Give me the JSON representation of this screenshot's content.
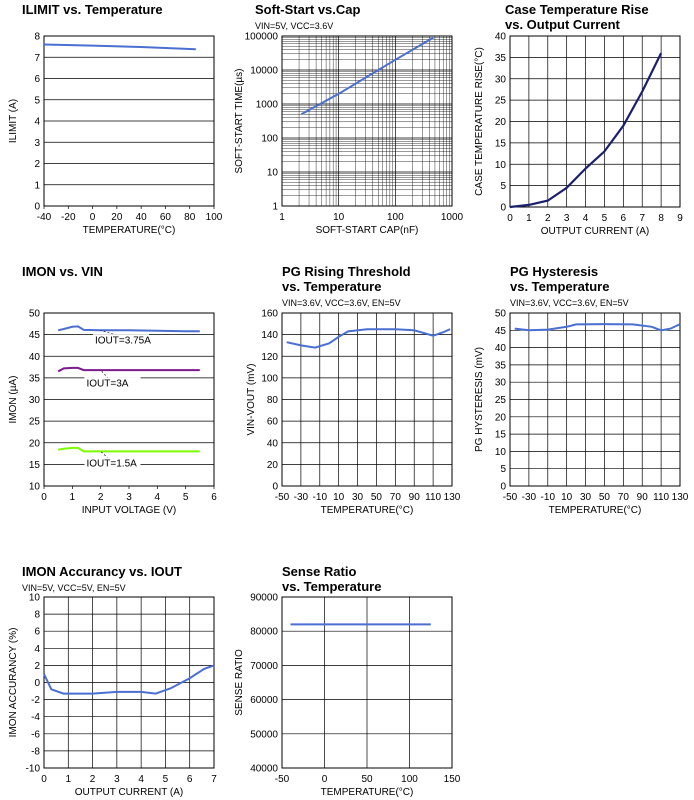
{
  "chart_data": [
    {
      "type": "line",
      "title": [
        "ILIMIT vs. Temperature"
      ],
      "xlabel": "TEMPERATURE(°C)",
      "ylabel": "ILIMIT (A)",
      "x": [
        -40,
        0,
        40,
        85
      ],
      "values": [
        7.6,
        7.55,
        7.48,
        7.38
      ],
      "color": "#4a6fd0",
      "xlim": [
        -40,
        100
      ],
      "xticks": [
        -40,
        -20,
        0,
        20,
        40,
        60,
        80,
        100
      ],
      "ylim": [
        0,
        8
      ],
      "yticks": [
        0,
        1,
        2,
        3,
        4,
        5,
        6,
        7,
        8
      ],
      "grid": "y"
    },
    {
      "type": "line",
      "title": [
        "Soft-Start vs.Cap"
      ],
      "subtitle": "VIN=5V, VCC=3.6V",
      "xlabel": "SOFT-START CAP(nF)",
      "ylabel": "SOFT-START TIME(µs)",
      "x": [
        2.2,
        10,
        100,
        470
      ],
      "values": [
        500,
        2000,
        20000,
        90000
      ],
      "color": "#4a6fd0",
      "log_x": true,
      "log_y": true,
      "xlim": [
        1,
        1000
      ],
      "xticks": [
        1,
        10,
        100,
        1000
      ],
      "ylim": [
        1,
        100000
      ],
      "yticks": [
        1,
        10,
        100,
        1000,
        10000,
        100000
      ],
      "grid": "both"
    },
    {
      "type": "line",
      "title": [
        "Case Temperature Rise",
        "vs. Output Current"
      ],
      "xlabel": "OUTPUT CURRENT (A)",
      "ylabel": "CASE TEMPERATURE RISE(°C)",
      "x": [
        0,
        1,
        2,
        3,
        4,
        5,
        6,
        7,
        8
      ],
      "values": [
        0,
        0.5,
        1.5,
        4.5,
        9,
        13,
        19,
        27,
        36
      ],
      "color": "#1b1f6e",
      "xlim": [
        0,
        9
      ],
      "xticks": [
        0,
        1,
        2,
        3,
        4,
        5,
        6,
        7,
        8,
        9
      ],
      "ylim": [
        0,
        40
      ],
      "yticks": [
        0,
        5,
        10,
        15,
        20,
        25,
        30,
        35,
        40
      ],
      "grid": "both"
    },
    {
      "type": "line",
      "title": [
        "IMON vs. VIN"
      ],
      "xlabel": "INPUT VOLTAGE (V)",
      "ylabel": "IMON (µA)",
      "x": [
        0.5,
        0.7,
        1,
        1.2,
        1.4,
        2,
        3,
        4,
        5,
        5.5
      ],
      "series": [
        {
          "name": "IOUT=3.75A",
          "color": "#4a6fd0",
          "values": [
            46,
            46.3,
            46.8,
            46.9,
            46.1,
            46,
            46,
            45.9,
            45.8,
            45.8
          ]
        },
        {
          "name": "IOUT=3A",
          "color": "#7b1a8a",
          "values": [
            36.5,
            37.2,
            37.3,
            37.3,
            36.8,
            36.8,
            36.8,
            36.8,
            36.8,
            36.8
          ]
        },
        {
          "name": "IOUT=1.5A",
          "color": "#7cfc00",
          "values": [
            18.4,
            18.6,
            18.8,
            18.8,
            18,
            18,
            18,
            18,
            18,
            18
          ]
        }
      ],
      "xlim": [
        0,
        6
      ],
      "xticks": [
        0,
        1,
        2,
        3,
        4,
        5,
        6
      ],
      "ylim": [
        10,
        50
      ],
      "yticks": [
        10,
        15,
        20,
        25,
        30,
        35,
        40,
        45,
        50
      ],
      "grid": "y"
    },
    {
      "type": "line",
      "title": [
        "PG Rising Threshold",
        "vs. Temperature"
      ],
      "subtitle": "VIN=3.6V, VCC=3.6V, EN=5V",
      "xlabel": "TEMPERATURE(°C)",
      "ylabel": "VIN-VOUT (mV)",
      "x": [
        -45,
        -30,
        -15,
        0,
        10,
        20,
        40,
        70,
        90,
        110,
        120,
        128
      ],
      "values": [
        133,
        130,
        128,
        132,
        138,
        143,
        145,
        145,
        144,
        139,
        142,
        145
      ],
      "color": "#4a6fd0",
      "xlim": [
        -50,
        130
      ],
      "xticks": [
        -50,
        -30,
        -10,
        10,
        30,
        50,
        70,
        90,
        110,
        130
      ],
      "ylim": [
        0,
        160
      ],
      "yticks": [
        0,
        20,
        40,
        60,
        80,
        100,
        120,
        140,
        160
      ],
      "grid": "both"
    },
    {
      "type": "line",
      "title": [
        "PG Hysteresis",
        "vs. Temperature"
      ],
      "subtitle": "VIN=3.6V, VCC=3.6V, EN=5V",
      "xlabel": "TEMPERATURE(°C)",
      "ylabel": "PG HYSTERESIS (mV)",
      "x": [
        -45,
        -30,
        -10,
        10,
        20,
        50,
        80,
        100,
        110,
        120,
        130
      ],
      "values": [
        45.5,
        45,
        45.2,
        46,
        46.7,
        46.8,
        46.7,
        46,
        45,
        45.5,
        46.8
      ],
      "color": "#4a6fd0",
      "xlim": [
        -50,
        130
      ],
      "xticks": [
        -50,
        -30,
        -10,
        10,
        30,
        50,
        70,
        90,
        110,
        130
      ],
      "ylim": [
        0,
        50
      ],
      "yticks": [
        0,
        5,
        10,
        15,
        20,
        25,
        30,
        35,
        40,
        45,
        50
      ],
      "grid": "both"
    },
    {
      "type": "line",
      "title": [
        "IMON Accurancy vs. IOUT"
      ],
      "subtitle": "VIN=5V, VCC=5V, EN=5V",
      "xlabel": "OUTPUT CURRENT (A)",
      "ylabel": "IMON ACCURANCY (%)",
      "x": [
        0,
        0.3,
        0.8,
        2,
        3,
        4,
        4.6,
        5.2,
        6,
        6.6,
        7
      ],
      "values": [
        1,
        -0.8,
        -1.3,
        -1.3,
        -1.1,
        -1.1,
        -1.3,
        -0.7,
        0.5,
        1.6,
        2
      ],
      "color": "#4a6fd0",
      "xlim": [
        0,
        7
      ],
      "xticks": [
        0,
        1,
        2,
        3,
        4,
        5,
        6,
        7
      ],
      "ylim": [
        -10,
        10
      ],
      "yticks": [
        -10,
        -8,
        -6,
        -4,
        -2,
        0,
        2,
        4,
        6,
        8,
        10
      ],
      "grid": "both"
    },
    {
      "type": "line",
      "title": [
        "Sense Ratio",
        "vs. Temperature"
      ],
      "xlabel": "TEMPERATURE(°C)",
      "ylabel": "SENSE RATIO",
      "x": [
        -40,
        125
      ],
      "values": [
        82000,
        82000
      ],
      "color": "#4a6fd0",
      "xlim": [
        -50,
        150
      ],
      "xticks": [
        -50,
        0,
        50,
        100,
        150
      ],
      "ylim": [
        40000,
        90000
      ],
      "yticks": [
        40000,
        50000,
        60000,
        70000,
        80000,
        90000
      ],
      "grid": "both"
    }
  ]
}
